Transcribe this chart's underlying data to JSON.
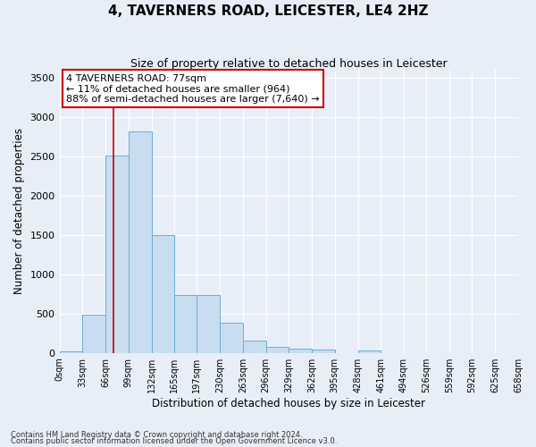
{
  "title": "4, TAVERNERS ROAD, LEICESTER, LE4 2HZ",
  "subtitle": "Size of property relative to detached houses in Leicester",
  "xlabel": "Distribution of detached houses by size in Leicester",
  "ylabel": "Number of detached properties",
  "bin_labels": [
    "0sqm",
    "33sqm",
    "66sqm",
    "99sqm",
    "132sqm",
    "165sqm",
    "197sqm",
    "230sqm",
    "263sqm",
    "296sqm",
    "329sqm",
    "362sqm",
    "395sqm",
    "428sqm",
    "461sqm",
    "494sqm",
    "526sqm",
    "559sqm",
    "592sqm",
    "625sqm",
    "658sqm"
  ],
  "bin_edges": [
    0,
    33,
    66,
    99,
    132,
    165,
    197,
    230,
    263,
    296,
    329,
    362,
    395,
    428,
    461,
    494,
    526,
    559,
    592,
    625,
    658
  ],
  "bar_values": [
    25,
    480,
    2510,
    2820,
    1500,
    740,
    740,
    385,
    155,
    75,
    55,
    40,
    0,
    35,
    0,
    0,
    0,
    0,
    0,
    0
  ],
  "bar_color": "#c9ddf0",
  "bar_edge_color": "#6aaed6",
  "property_sqm": 77,
  "vline_color": "#cc0000",
  "annotation_text": "4 TAVERNERS ROAD: 77sqm\n← 11% of detached houses are smaller (964)\n88% of semi-detached houses are larger (7,640) →",
  "annotation_box_facecolor": "white",
  "annotation_box_edgecolor": "#cc0000",
  "footnote1": "Contains HM Land Registry data © Crown copyright and database right 2024.",
  "footnote2": "Contains public sector information licensed under the Open Government Licence v3.0.",
  "ylim": [
    0,
    3600
  ],
  "yticks": [
    0,
    500,
    1000,
    1500,
    2000,
    2500,
    3000,
    3500
  ],
  "bg_color": "#e8eef8",
  "plot_bg_color": "#e8eef8",
  "title_fontsize": 11,
  "subtitle_fontsize": 9
}
